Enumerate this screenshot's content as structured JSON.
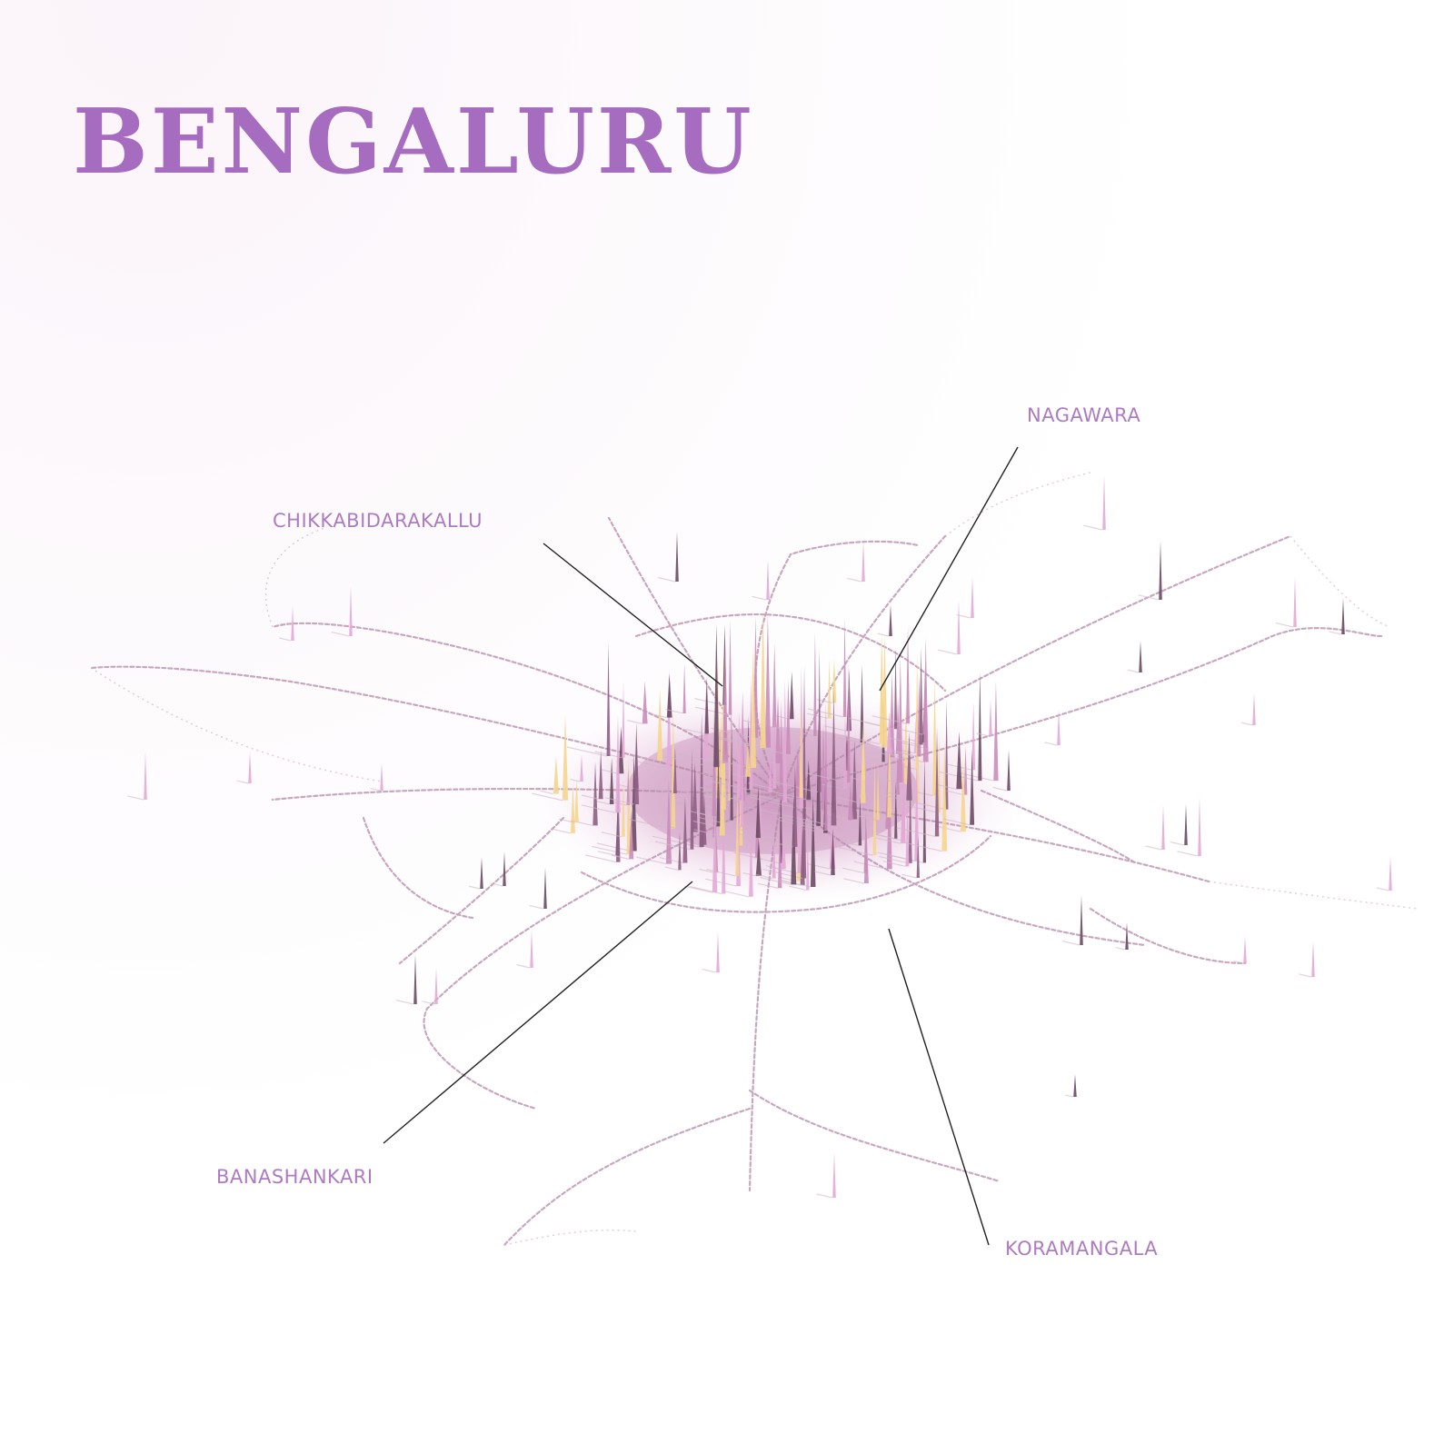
{
  "title": "BENGALURU",
  "labels": {
    "nagawara": "NAGAWARA",
    "chikkabidarakallu": "CHIKKABIDARAKALLU",
    "banashankari": "BANASHANKARI",
    "koramangala": "KORAMANGALA"
  },
  "colors": {
    "title": "#a56cbf",
    "label": "#ad7cc0",
    "spike_dark": "#6b4a63",
    "spike_pink": "#e3a9d6",
    "spike_yellow": "#f5d58e",
    "road": "#b58aa9",
    "core_fill": "#d9a6cb",
    "leader_line": "#222222"
  }
}
